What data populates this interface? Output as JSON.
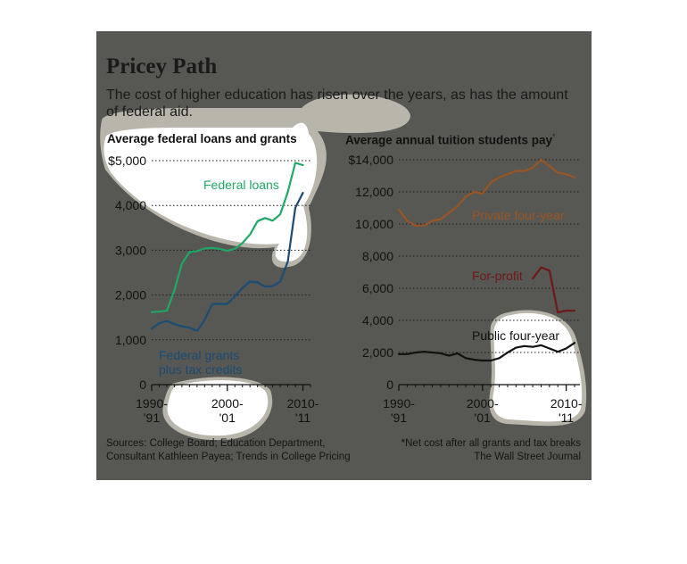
{
  "header": {
    "title": "Pricey Path",
    "subtitle": "The cost of higher education has risen over the years, as has the amount of federal aid."
  },
  "colors": {
    "background": "#575753",
    "loans": "#1fa866",
    "grants": "#1a4c74",
    "private": "#9a5524",
    "forprofit": "#6e1818",
    "public": "#111111"
  },
  "chart_data": [
    {
      "type": "line",
      "title": "Average federal loans and grants",
      "xlabel": "",
      "ylabel": "",
      "xlim": [
        1990,
        2011
      ],
      "ylim": [
        0,
        5000
      ],
      "yticks": [
        0,
        1000,
        2000,
        3000,
        4000,
        5000
      ],
      "ytick_labels": [
        "0",
        "1,000",
        "2,000",
        "3,000",
        "4,000",
        "$5,000"
      ],
      "xticks": [
        1990,
        2000,
        2010
      ],
      "xtick_labels": [
        [
          "1990-",
          "'91"
        ],
        [
          "2000-",
          "'01"
        ],
        [
          "2010-",
          "'11"
        ]
      ],
      "grid": true,
      "series": [
        {
          "name": "Federal loans",
          "x": [
            1990,
            1991,
            1992,
            1993,
            1994,
            1995,
            1996,
            1997,
            1998,
            1999,
            2000,
            2001,
            2002,
            2003,
            2004,
            2005,
            2006,
            2007,
            2008,
            2009,
            2010
          ],
          "values": [
            1620,
            1630,
            1650,
            2100,
            2700,
            2960,
            2980,
            3040,
            3050,
            3030,
            2990,
            3030,
            3160,
            3350,
            3650,
            3720,
            3660,
            3800,
            4300,
            4950,
            4900
          ]
        },
        {
          "name": "Federal grants plus tax credits",
          "x": [
            1990,
            1991,
            1992,
            1993,
            1994,
            1995,
            1996,
            1997,
            1998,
            1999,
            2000,
            2001,
            2002,
            2003,
            2004,
            2005,
            2006,
            2007,
            2008,
            2009,
            2010
          ],
          "values": [
            1250,
            1370,
            1420,
            1350,
            1300,
            1270,
            1200,
            1440,
            1800,
            1800,
            1800,
            1970,
            2160,
            2300,
            2280,
            2190,
            2200,
            2300,
            2750,
            3950,
            4280
          ]
        }
      ]
    },
    {
      "type": "line",
      "title": "Average annual tuition students pay",
      "title_mark": "*",
      "xlabel": "",
      "ylabel": "",
      "xlim": [
        1990,
        2011
      ],
      "ylim": [
        0,
        14000
      ],
      "yticks": [
        0,
        2000,
        4000,
        6000,
        8000,
        10000,
        12000,
        14000
      ],
      "ytick_labels": [
        "0",
        "2,000",
        "4,000",
        "6,000",
        "8,000",
        "10,000",
        "12,000",
        "$14,000"
      ],
      "xticks": [
        1990,
        2000,
        2010
      ],
      "xtick_labels": [
        [
          "1990-",
          "'91"
        ],
        [
          "2000-",
          "'01"
        ],
        [
          "2010-",
          "'11"
        ]
      ],
      "grid": true,
      "series": [
        {
          "name": "Private four-year",
          "x": [
            1990,
            1991,
            1992,
            1993,
            1994,
            1995,
            1996,
            1997,
            1998,
            1999,
            2000,
            2001,
            2002,
            2003,
            2004,
            2005,
            2006,
            2007,
            2008,
            2009,
            2010,
            2011
          ],
          "values": [
            10900,
            10200,
            9900,
            9900,
            10200,
            10300,
            10700,
            11100,
            11700,
            12000,
            11900,
            12600,
            12900,
            13100,
            13300,
            13300,
            13500,
            14000,
            13600,
            13200,
            13100,
            12900
          ]
        },
        {
          "name": "For-profit",
          "x": [
            2006,
            2007,
            2008,
            2009,
            2010,
            2011
          ],
          "values": [
            6600,
            7300,
            7100,
            4500,
            4600,
            4600
          ]
        },
        {
          "name": "Public four-year",
          "x": [
            1990,
            1991,
            1992,
            1993,
            1994,
            1995,
            1996,
            1997,
            1998,
            1999,
            2000,
            2001,
            2002,
            2003,
            2004,
            2005,
            2006,
            2007,
            2008,
            2009,
            2010,
            2011
          ],
          "values": [
            1900,
            1900,
            2000,
            2050,
            2000,
            1950,
            1800,
            1950,
            1650,
            1550,
            1500,
            1500,
            1650,
            2000,
            2300,
            2400,
            2350,
            2450,
            2250,
            2050,
            2250,
            2600
          ]
        }
      ]
    }
  ],
  "footer": {
    "sources_line1": "Sources: College Board; Education Department,",
    "sources_line2": "Consultant Kathleen Payea; Trends in College Pricing",
    "note": "*Net cost after all grants and tax breaks",
    "credit": "The Wall Street Journal"
  }
}
